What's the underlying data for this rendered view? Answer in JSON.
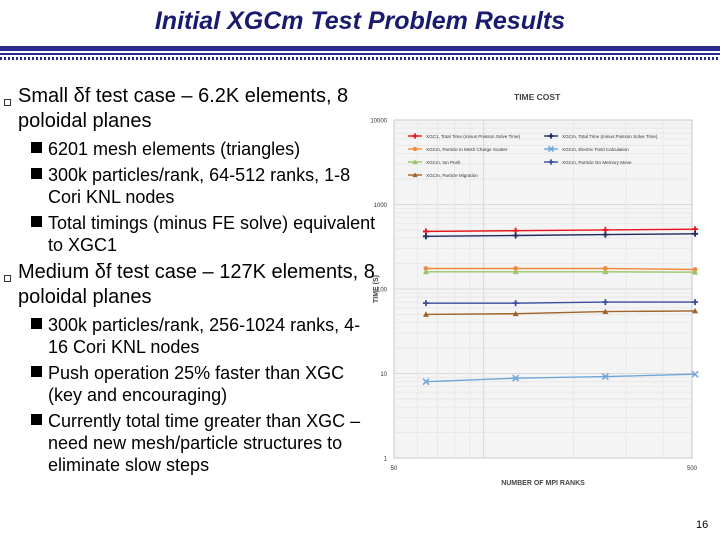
{
  "slide": {
    "title": "Initial XGCm Test Problem Results",
    "page_number": "16"
  },
  "bullets": [
    {
      "text": "Small δf test case – 6.2K elements, 8 poloidal planes",
      "sub": [
        "6201 mesh elements (triangles)",
        "300k particles/rank, 64-512 ranks, 1-8 Cori KNL nodes",
        "Total timings (minus FE solve) equivalent to XGC1"
      ]
    },
    {
      "text": "Medium δf test case – 127K elements, 8 poloidal planes",
      "sub": [
        "300k particles/rank, 256-1024 ranks, 4-16 Cori KNL nodes",
        "Push operation 25% faster than XGC (key and encouraging)",
        "Currently total time greater than XGC – need new mesh/particle structures to eliminate slow steps"
      ]
    }
  ],
  "chart_data": {
    "type": "line",
    "title": "TIME COST",
    "xlabel": "NUMBER OF MPI RANKS",
    "ylabel": "TIME (S)",
    "x_scale": "log",
    "y_scale": "log",
    "xlim": [
      50,
      500
    ],
    "ylim": [
      1,
      10000
    ],
    "x_ticks": [
      "50",
      "500"
    ],
    "y_ticks": [
      "1",
      "10",
      "100",
      "1000",
      "10000"
    ],
    "grid": true,
    "legend_position": "top",
    "x": [
      64,
      128,
      256,
      512
    ],
    "series": [
      {
        "name": "XGC1, Total Time (minus Poisson Solve Time)",
        "color": "#e8141c",
        "marker": "plus",
        "values": [
          480,
          490,
          500,
          510
        ]
      },
      {
        "name": "XGCm, Total Time (minus Poisson Solve Time)",
        "color": "#1f2a5e",
        "marker": "plus",
        "values": [
          420,
          430,
          440,
          450
        ]
      },
      {
        "name": "XGCm, Particle to Mesh Charge Scatter",
        "color": "#f08a3a",
        "marker": "circle",
        "values": [
          175,
          175,
          175,
          170
        ]
      },
      {
        "name": "XGCm, Electric Field Calculation",
        "color": "#6fa6d9",
        "marker": "x",
        "values": [
          8,
          8.8,
          9.2,
          9.8
        ]
      },
      {
        "name": "XGCm, Ion Push",
        "color": "#9ac46a",
        "marker": "triangle",
        "values": [
          160,
          160,
          160,
          158
        ]
      },
      {
        "name": "XGCm, Particle On Memory Move",
        "color": "#3a4d9c",
        "marker": "plus",
        "values": [
          68,
          68,
          70,
          70
        ]
      },
      {
        "name": "XGCm, Particle Migration",
        "color": "#a0632a",
        "marker": "triangle",
        "values": [
          50,
          51,
          54,
          55
        ]
      }
    ]
  }
}
